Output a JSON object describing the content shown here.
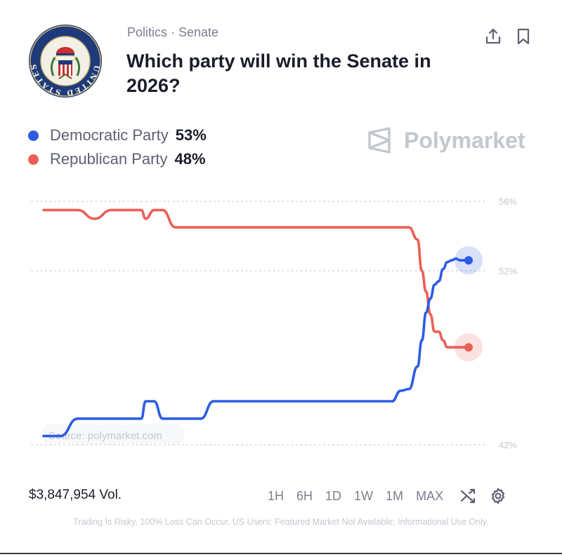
{
  "header": {
    "category": "Politics · Senate",
    "title": "Which party will win the Senate in 2026?",
    "seal_text": "UNITED STATES SENATE",
    "seal_motto": "E PLURIBUS UNUM"
  },
  "brand": {
    "name": "Polymarket"
  },
  "legend": [
    {
      "name": "Democratic Party",
      "value": "53%",
      "color": "#2d5be3"
    },
    {
      "name": "Republican Party",
      "value": "48%",
      "color": "#eb5f57"
    }
  ],
  "chart_data": {
    "type": "line",
    "y_ticks": [
      "56%",
      "52%",
      "42%"
    ],
    "y_tick_values": [
      56,
      52,
      42
    ],
    "ylim": [
      42,
      56
    ],
    "x": [
      0,
      4,
      8,
      12,
      16,
      20,
      23,
      24,
      26,
      28,
      31,
      34,
      37,
      40,
      43,
      46,
      48,
      50,
      52,
      55,
      58,
      61,
      64,
      67,
      70,
      73,
      76,
      79,
      82,
      84,
      86,
      88,
      89,
      90,
      91,
      92,
      93,
      94,
      95,
      96,
      97,
      98,
      100
    ],
    "series": [
      {
        "name": "Democratic Party",
        "color": "#2d5be3",
        "values": [
          42.5,
          42.5,
          43.5,
          43.5,
          43.5,
          43.5,
          43.5,
          44.5,
          44.5,
          43.5,
          43.5,
          43.5,
          43.5,
          44.5,
          44.5,
          44.5,
          44.5,
          44.5,
          44.5,
          44.5,
          44.5,
          44.5,
          44.5,
          44.5,
          44.5,
          44.5,
          44.5,
          44.5,
          44.5,
          45.1,
          45.2,
          46.5,
          48.0,
          49.6,
          50.4,
          51.2,
          51.4,
          52.1,
          52.5,
          52.6,
          52.7,
          52.6,
          52.6
        ]
      },
      {
        "name": "Republican Party",
        "color": "#eb5f57",
        "values": [
          55.5,
          55.5,
          55.5,
          55.0,
          55.5,
          55.5,
          55.5,
          55.0,
          55.5,
          55.5,
          54.5,
          54.5,
          54.5,
          54.5,
          54.5,
          54.5,
          54.5,
          54.5,
          54.5,
          54.5,
          54.5,
          54.5,
          54.5,
          54.5,
          54.5,
          54.5,
          54.5,
          54.5,
          54.5,
          54.5,
          54.5,
          53.8,
          52.0,
          50.8,
          49.5,
          48.5,
          48.5,
          48.0,
          47.6,
          47.6,
          47.6,
          47.6,
          47.6
        ]
      }
    ],
    "source": "Source: polymarket.com",
    "grid": true,
    "grid_style": "dotted"
  },
  "footer": {
    "volume": "$3,847,954 Vol.",
    "ranges": [
      "1H",
      "6H",
      "1D",
      "1W",
      "1M",
      "MAX"
    ],
    "disclaimer": "Trading Is Risky. 100% Loss Can Occur. US Users: Featured Market Not Available; Informational Use Only."
  },
  "colors": {
    "accent_blue": "#2d5be3",
    "accent_red": "#eb5f57",
    "muted": "#7b7f8c"
  },
  "icons": [
    "share-icon",
    "bookmark-icon",
    "polymarket-logo-icon",
    "shuffle-icon",
    "gear-icon"
  ]
}
